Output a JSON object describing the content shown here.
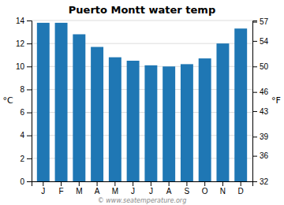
{
  "chart_data": {
    "type": "bar",
    "title": "Puerto Montt water temp",
    "categories": [
      "J",
      "F",
      "M",
      "A",
      "M",
      "J",
      "J",
      "A",
      "S",
      "O",
      "N",
      "D"
    ],
    "values": [
      13.8,
      13.8,
      12.8,
      11.7,
      10.8,
      10.5,
      10.1,
      10.0,
      10.2,
      10.7,
      12.0,
      13.3
    ],
    "ylim": [
      0,
      14
    ],
    "yticks": [
      0,
      2,
      4,
      6,
      8,
      10,
      12,
      14
    ],
    "ylabel": "°C",
    "y2lim": [
      32,
      57.2
    ],
    "y2ticks": [
      32,
      36,
      39,
      43,
      46,
      50,
      54,
      57
    ],
    "y2label": "°F",
    "grid": true,
    "annotations": [
      "© www.seatemperature.org"
    ]
  }
}
